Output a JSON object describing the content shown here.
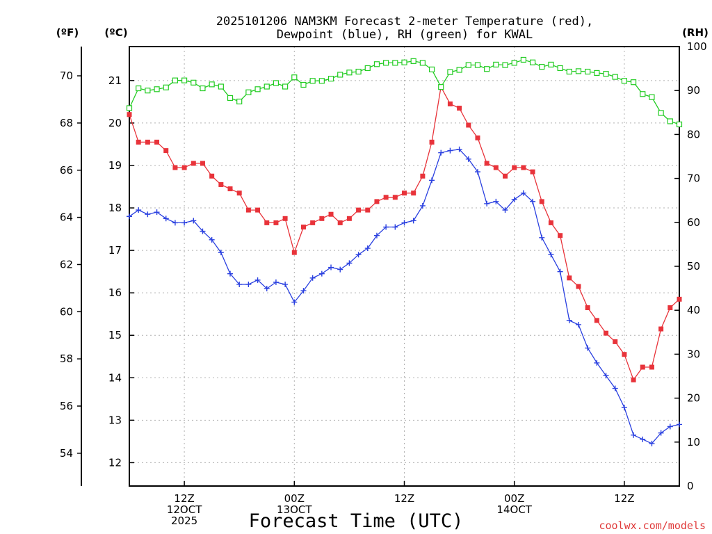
{
  "chart_data": {
    "type": "line",
    "title_line1": "2025101206 NAM3KM Forecast 2-meter Temperature (red),",
    "title_line2": "Dewpoint (blue), RH (green) for KWAL",
    "xlabel": "Forecast Time (UTC)",
    "credit": "coolwx.com/models",
    "units": {
      "fahrenheit": "(ºF)",
      "celsius": "(ºC)",
      "rh": "(RH)"
    },
    "fahrenheit_ticks": [
      "54",
      "56",
      "58",
      "60",
      "62",
      "64",
      "66",
      "68",
      "70"
    ],
    "celsius_ticks": [
      "12",
      "13",
      "14",
      "15",
      "16",
      "17",
      "18",
      "19",
      "20",
      "21"
    ],
    "rh_ticks": [
      "0",
      "10",
      "20",
      "30",
      "40",
      "50",
      "60",
      "70",
      "80",
      "90",
      "100"
    ],
    "x_ticks": [
      {
        "hour": 6,
        "l1": "12Z",
        "l2": "12OCT",
        "l3": "2025"
      },
      {
        "hour": 18,
        "l1": "00Z",
        "l2": "13OCT",
        "l3": ""
      },
      {
        "hour": 30,
        "l1": "12Z",
        "l2": "",
        "l3": ""
      },
      {
        "hour": 42,
        "l1": "00Z",
        "l2": "14OCT",
        "l3": ""
      },
      {
        "hour": 54,
        "l1": "12Z",
        "l2": "",
        "l3": ""
      }
    ],
    "x_range_hours": [
      0,
      60
    ],
    "celsius_range": [
      11.45,
      21.8
    ],
    "rh_range": [
      0,
      100
    ],
    "series": [
      {
        "name": "Temperature",
        "unit": "C",
        "color": "#e8333a",
        "marker": "filled-square",
        "values": [
          20.2,
          19.55,
          19.55,
          19.55,
          19.35,
          18.95,
          18.95,
          19.05,
          19.05,
          18.75,
          18.55,
          18.45,
          18.35,
          17.95,
          17.95,
          17.65,
          17.65,
          17.75,
          16.95,
          17.55,
          17.65,
          17.75,
          17.85,
          17.65,
          17.75,
          17.95,
          17.95,
          18.15,
          18.25,
          18.25,
          18.35,
          18.35,
          18.75,
          19.55,
          20.85,
          20.45,
          20.35,
          19.95,
          19.65,
          19.05,
          18.95,
          18.75,
          18.95,
          18.95,
          18.85,
          18.15,
          17.65,
          17.35,
          16.35,
          16.15,
          15.65,
          15.35,
          15.05,
          14.85,
          14.55,
          13.95,
          14.25,
          14.25,
          15.15,
          15.65,
          15.85
        ]
      },
      {
        "name": "Dewpoint",
        "unit": "C",
        "color": "#2a40e0",
        "marker": "plus",
        "values": [
          17.8,
          17.95,
          17.85,
          17.9,
          17.75,
          17.65,
          17.65,
          17.7,
          17.45,
          17.25,
          16.95,
          16.45,
          16.2,
          16.2,
          16.3,
          16.1,
          16.25,
          16.2,
          15.78,
          16.05,
          16.35,
          16.45,
          16.6,
          16.55,
          16.7,
          16.9,
          17.05,
          17.35,
          17.55,
          17.55,
          17.65,
          17.7,
          18.05,
          18.65,
          19.3,
          19.35,
          19.38,
          19.15,
          18.85,
          18.1,
          18.15,
          17.95,
          18.2,
          18.35,
          18.15,
          17.3,
          16.9,
          16.5,
          15.35,
          15.25,
          14.7,
          14.35,
          14.05,
          13.75,
          13.3,
          12.65,
          12.55,
          12.45,
          12.7,
          12.85,
          12.9
        ]
      },
      {
        "name": "RH",
        "unit": "%",
        "color": "#22cc22",
        "marker": "open-square",
        "values": [
          86,
          90.5,
          90,
          90.3,
          90.7,
          92.3,
          92.3,
          91.8,
          90.5,
          91.4,
          90.9,
          88.3,
          87.5,
          89.6,
          90.3,
          90.9,
          91.7,
          90.9,
          93,
          91.3,
          92.2,
          92.2,
          92.7,
          93.6,
          94.1,
          94.3,
          95.1,
          96,
          96.3,
          96.3,
          96.4,
          96.7,
          96.3,
          94.8,
          90.8,
          94.2,
          94.7,
          95.8,
          95.8,
          94.9,
          95.9,
          95.8,
          96.3,
          97,
          96.4,
          95.4,
          95.9,
          95.1,
          94.3,
          94.4,
          94.3,
          94,
          93.8,
          93.1,
          92.2,
          91.9,
          89.2,
          88.5,
          84.9,
          83,
          82.3
        ]
      }
    ]
  }
}
